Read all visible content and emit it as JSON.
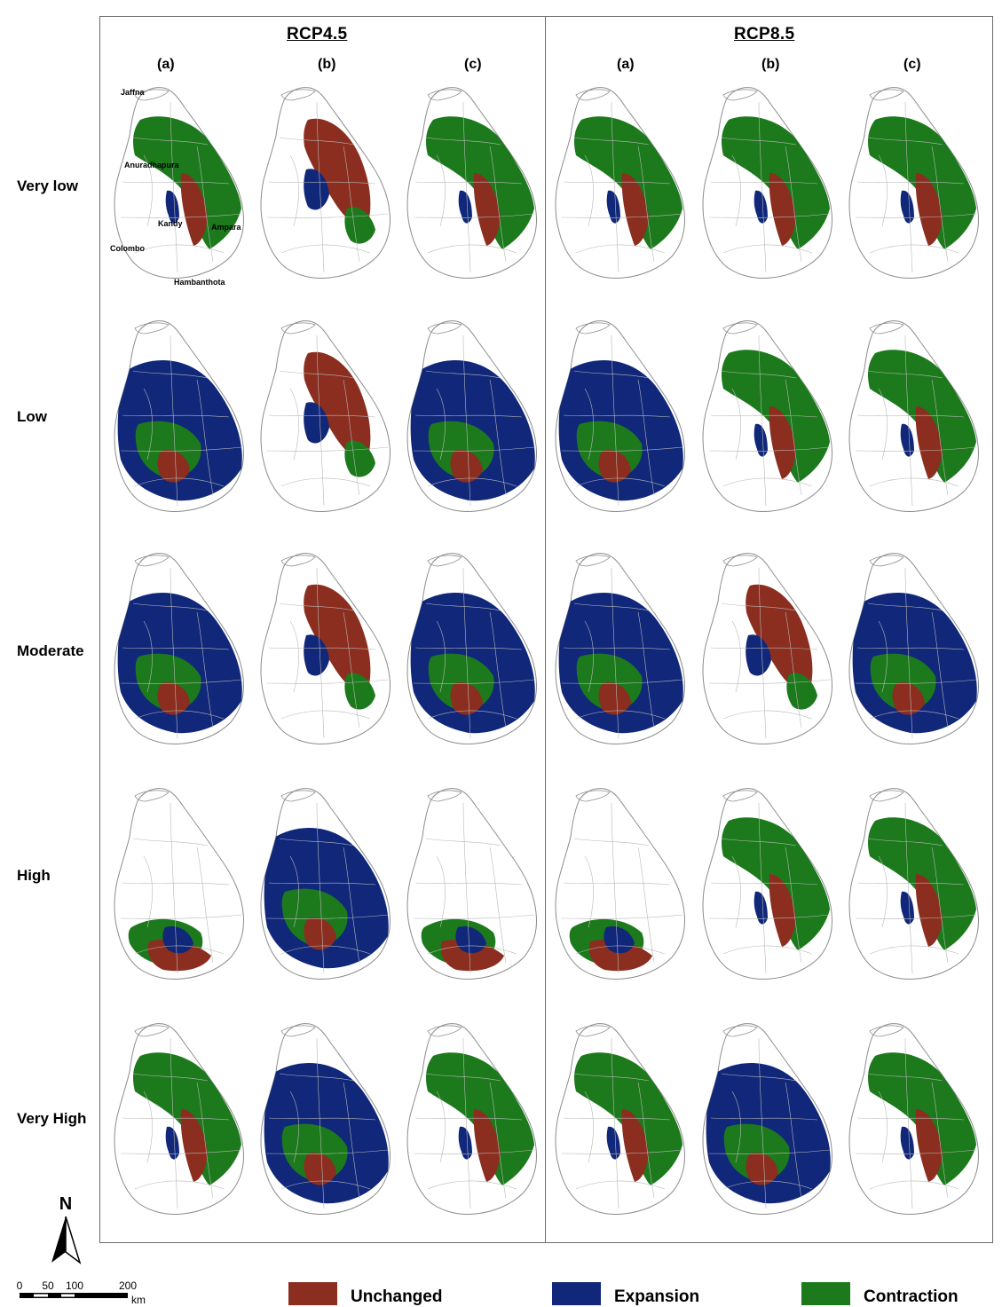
{
  "scenarios": [
    "RCP4.5",
    "RCP8.5"
  ],
  "columns": [
    "(a)",
    "(b)",
    "(c)",
    "(a)",
    "(b)",
    "(c)"
  ],
  "rows": [
    "Very low",
    "Low",
    "Moderate",
    "High",
    "Very High"
  ],
  "place_names": [
    "Jaffna",
    "Anuradhapura",
    "Kandy",
    "Ampara",
    "Colombo",
    "Hambanthota"
  ],
  "legend": [
    {
      "label": "Unchanged",
      "color": "#8b2e1f"
    },
    {
      "label": "Expansion",
      "color": "#10277a"
    },
    {
      "label": "Contraction",
      "color": "#1c7a1c"
    }
  ],
  "north_arrow": {
    "label": "N"
  },
  "scale_bar": {
    "ticks": [
      "0",
      "50",
      "100",
      "200"
    ],
    "unit": "km"
  },
  "colors": {
    "outline": "#8c8c8c",
    "frame": "#6a6a6a",
    "map_fill": "#ffffff"
  },
  "panels": [
    [
      "green",
      "red",
      "green",
      "green",
      "green",
      "green"
    ],
    [
      "blue",
      "red",
      "blue",
      "blue",
      "green",
      "green"
    ],
    [
      "blue",
      "red",
      "blue",
      "blue",
      "red",
      "blue"
    ],
    [
      "mixed",
      "blue",
      "mixed",
      "mixed",
      "green",
      "green"
    ],
    [
      "green",
      "blue",
      "green",
      "green",
      "blue",
      "green"
    ]
  ]
}
